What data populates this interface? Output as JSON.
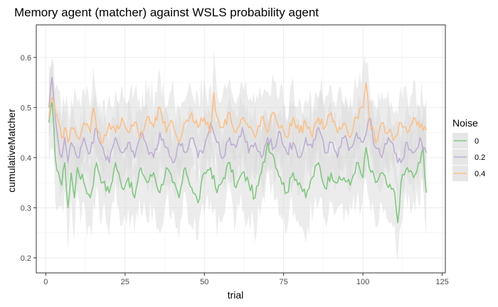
{
  "chart_data": {
    "type": "line",
    "title": "Memory agent (matcher) against WSLS probability agent",
    "xlabel": "trial",
    "ylabel": "cumulativeMatcher",
    "xlim": [
      -3,
      126
    ],
    "ylim": [
      0.17,
      0.665
    ],
    "x_ticks": [
      0,
      25,
      50,
      75,
      100,
      125
    ],
    "y_ticks": [
      0.2,
      0.3,
      0.4,
      0.5,
      0.6
    ],
    "grid": true,
    "legend": {
      "title": "Noise",
      "position": "right"
    },
    "ribbon_color": "#d9d9d9",
    "series": [
      {
        "name": "0",
        "color": "#7fc97f",
        "ribbon_halfwidth": 0.065,
        "key_points": [
          [
            1,
            0.47
          ],
          [
            2,
            0.51
          ],
          [
            3,
            0.4
          ],
          [
            4,
            0.37
          ],
          [
            5,
            0.345
          ],
          [
            6,
            0.39
          ],
          [
            7,
            0.3
          ],
          [
            8,
            0.37
          ],
          [
            9,
            0.32
          ],
          [
            10,
            0.38
          ],
          [
            12,
            0.35
          ],
          [
            14,
            0.32
          ],
          [
            16,
            0.39
          ],
          [
            18,
            0.35
          ],
          [
            20,
            0.33
          ],
          [
            22,
            0.39
          ],
          [
            24,
            0.34
          ],
          [
            26,
            0.36
          ],
          [
            28,
            0.32
          ],
          [
            30,
            0.38
          ],
          [
            32,
            0.35
          ],
          [
            34,
            0.37
          ],
          [
            36,
            0.33
          ],
          [
            38,
            0.38
          ],
          [
            40,
            0.35
          ],
          [
            42,
            0.32
          ],
          [
            44,
            0.38
          ],
          [
            46,
            0.34
          ],
          [
            48,
            0.31
          ],
          [
            50,
            0.37
          ],
          [
            52,
            0.38
          ],
          [
            54,
            0.33
          ],
          [
            56,
            0.36
          ],
          [
            58,
            0.39
          ],
          [
            60,
            0.34
          ],
          [
            62,
            0.37
          ],
          [
            64,
            0.35
          ],
          [
            66,
            0.32
          ],
          [
            68,
            0.37
          ],
          [
            70,
            0.43
          ],
          [
            72,
            0.4
          ],
          [
            74,
            0.36
          ],
          [
            76,
            0.33
          ],
          [
            78,
            0.37
          ],
          [
            80,
            0.35
          ],
          [
            82,
            0.32
          ],
          [
            84,
            0.36
          ],
          [
            86,
            0.39
          ],
          [
            88,
            0.34
          ],
          [
            90,
            0.37
          ],
          [
            92,
            0.35
          ],
          [
            94,
            0.36
          ],
          [
            96,
            0.345
          ],
          [
            98,
            0.39
          ],
          [
            100,
            0.36
          ],
          [
            101,
            0.42
          ],
          [
            102,
            0.38
          ],
          [
            104,
            0.35
          ],
          [
            106,
            0.37
          ],
          [
            108,
            0.34
          ],
          [
            110,
            0.33
          ],
          [
            111,
            0.27
          ],
          [
            112,
            0.35
          ],
          [
            114,
            0.38
          ],
          [
            116,
            0.36
          ],
          [
            118,
            0.39
          ],
          [
            119,
            0.42
          ],
          [
            120,
            0.33
          ]
        ]
      },
      {
        "name": "0.2",
        "color": "#beaed4",
        "ribbon_halfwidth": 0.06,
        "key_points": [
          [
            1,
            0.5
          ],
          [
            2,
            0.56
          ],
          [
            3,
            0.48
          ],
          [
            4,
            0.43
          ],
          [
            5,
            0.4
          ],
          [
            6,
            0.44
          ],
          [
            7,
            0.39
          ],
          [
            8,
            0.43
          ],
          [
            10,
            0.4
          ],
          [
            12,
            0.44
          ],
          [
            14,
            0.41
          ],
          [
            16,
            0.46
          ],
          [
            18,
            0.42
          ],
          [
            20,
            0.39
          ],
          [
            22,
            0.44
          ],
          [
            24,
            0.41
          ],
          [
            26,
            0.43
          ],
          [
            28,
            0.4
          ],
          [
            30,
            0.45
          ],
          [
            32,
            0.42
          ],
          [
            34,
            0.4
          ],
          [
            36,
            0.45
          ],
          [
            38,
            0.42
          ],
          [
            40,
            0.39
          ],
          [
            42,
            0.43
          ],
          [
            44,
            0.41
          ],
          [
            46,
            0.44
          ],
          [
            48,
            0.4
          ],
          [
            50,
            0.42
          ],
          [
            52,
            0.47
          ],
          [
            54,
            0.43
          ],
          [
            56,
            0.4
          ],
          [
            58,
            0.44
          ],
          [
            60,
            0.42
          ],
          [
            62,
            0.46
          ],
          [
            64,
            0.41
          ],
          [
            66,
            0.43
          ],
          [
            68,
            0.4
          ],
          [
            70,
            0.44
          ],
          [
            72,
            0.42
          ],
          [
            74,
            0.45
          ],
          [
            76,
            0.41
          ],
          [
            78,
            0.43
          ],
          [
            80,
            0.4
          ],
          [
            82,
            0.44
          ],
          [
            84,
            0.42
          ],
          [
            86,
            0.46
          ],
          [
            88,
            0.41
          ],
          [
            90,
            0.43
          ],
          [
            92,
            0.4
          ],
          [
            94,
            0.44
          ],
          [
            96,
            0.42
          ],
          [
            98,
            0.45
          ],
          [
            100,
            0.43
          ],
          [
            102,
            0.48
          ],
          [
            104,
            0.42
          ],
          [
            106,
            0.4
          ],
          [
            108,
            0.44
          ],
          [
            110,
            0.41
          ],
          [
            112,
            0.39
          ],
          [
            114,
            0.43
          ],
          [
            116,
            0.41
          ],
          [
            118,
            0.44
          ],
          [
            120,
            0.41
          ]
        ]
      },
      {
        "name": "0.4",
        "color": "#fdc086",
        "ribbon_halfwidth": 0.06,
        "key_points": [
          [
            1,
            0.48
          ],
          [
            2,
            0.52
          ],
          [
            3,
            0.49
          ],
          [
            4,
            0.47
          ],
          [
            5,
            0.44
          ],
          [
            6,
            0.46
          ],
          [
            7,
            0.43
          ],
          [
            8,
            0.46
          ],
          [
            10,
            0.44
          ],
          [
            12,
            0.47
          ],
          [
            14,
            0.45
          ],
          [
            15,
            0.5
          ],
          [
            16,
            0.46
          ],
          [
            18,
            0.43
          ],
          [
            20,
            0.47
          ],
          [
            22,
            0.45
          ],
          [
            24,
            0.48
          ],
          [
            26,
            0.45
          ],
          [
            28,
            0.47
          ],
          [
            30,
            0.44
          ],
          [
            32,
            0.48
          ],
          [
            34,
            0.46
          ],
          [
            36,
            0.5
          ],
          [
            38,
            0.45
          ],
          [
            40,
            0.47
          ],
          [
            42,
            0.43
          ],
          [
            44,
            0.47
          ],
          [
            46,
            0.49
          ],
          [
            48,
            0.46
          ],
          [
            50,
            0.48
          ],
          [
            52,
            0.45
          ],
          [
            53,
            0.53
          ],
          [
            54,
            0.48
          ],
          [
            56,
            0.46
          ],
          [
            58,
            0.49
          ],
          [
            60,
            0.45
          ],
          [
            62,
            0.48
          ],
          [
            64,
            0.46
          ],
          [
            66,
            0.44
          ],
          [
            68,
            0.48
          ],
          [
            70,
            0.45
          ],
          [
            72,
            0.49
          ],
          [
            74,
            0.46
          ],
          [
            76,
            0.44
          ],
          [
            78,
            0.48
          ],
          [
            80,
            0.45
          ],
          [
            82,
            0.47
          ],
          [
            84,
            0.44
          ],
          [
            86,
            0.48
          ],
          [
            88,
            0.46
          ],
          [
            90,
            0.49
          ],
          [
            92,
            0.45
          ],
          [
            94,
            0.47
          ],
          [
            96,
            0.44
          ],
          [
            98,
            0.48
          ],
          [
            100,
            0.5
          ],
          [
            101,
            0.55
          ],
          [
            102,
            0.48
          ],
          [
            104,
            0.43
          ],
          [
            106,
            0.47
          ],
          [
            108,
            0.45
          ],
          [
            110,
            0.44
          ],
          [
            112,
            0.47
          ],
          [
            114,
            0.45
          ],
          [
            116,
            0.48
          ],
          [
            118,
            0.46
          ],
          [
            120,
            0.455
          ]
        ]
      }
    ]
  }
}
